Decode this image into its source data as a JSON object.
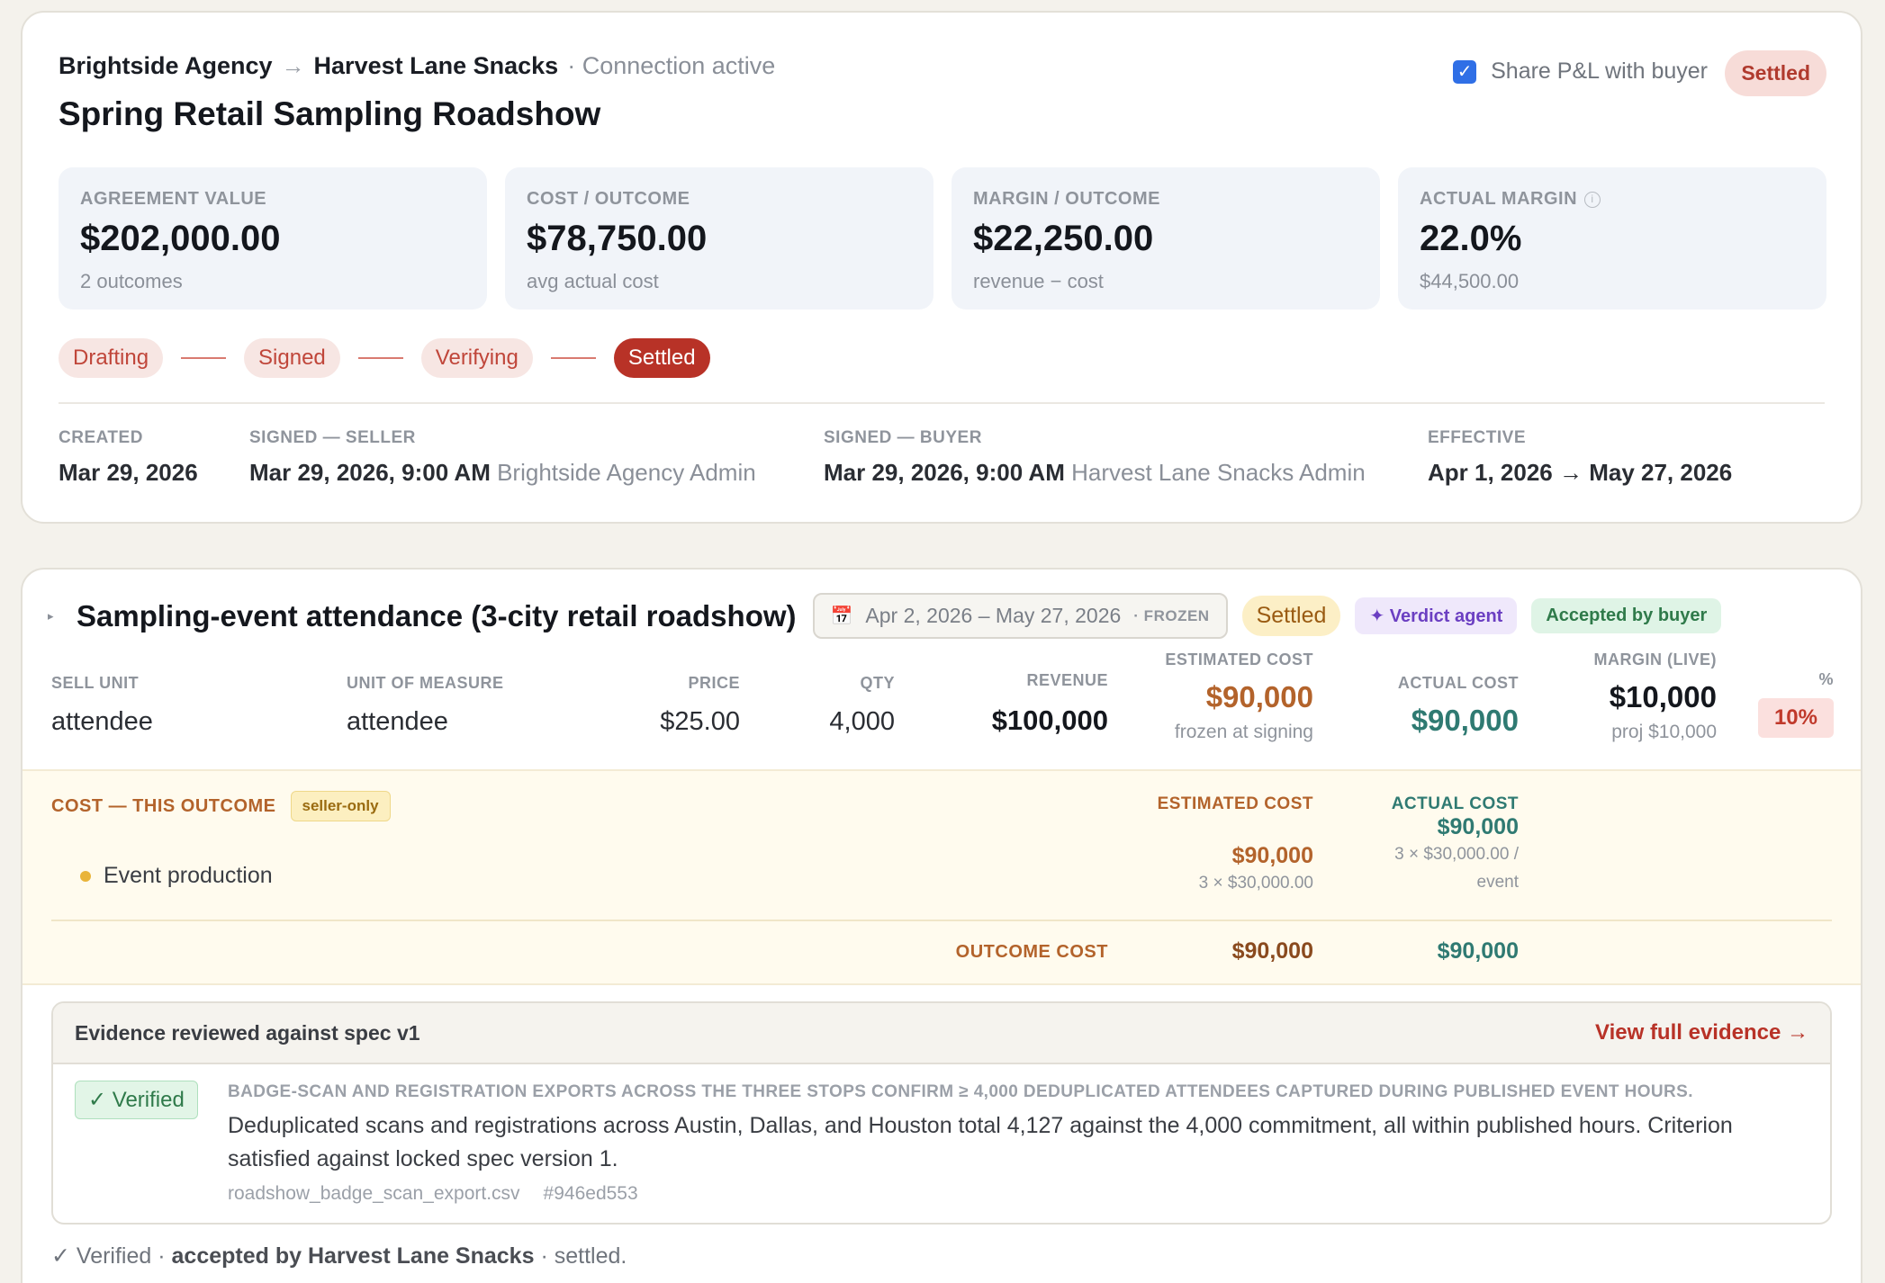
{
  "header": {
    "seller": "Brightside Agency",
    "arrow": "→",
    "buyer": "Harvest Lane Snacks",
    "connection": "· Connection active",
    "title": "Spring Retail Sampling Roadshow",
    "share_label": "Share P&L with buyer",
    "share_checked": true,
    "status": "Settled"
  },
  "kpis": [
    {
      "label": "AGREEMENT VALUE",
      "value": "$202,000.00",
      "sub": "2 outcomes"
    },
    {
      "label": "COST / OUTCOME",
      "value": "$78,750.00",
      "sub": "avg actual cost"
    },
    {
      "label": "MARGIN / OUTCOME",
      "value": "$22,250.00",
      "sub": "revenue − cost"
    },
    {
      "label": "ACTUAL MARGIN",
      "value": "22.0%",
      "sub": "$44,500.00",
      "info_icon": "i"
    }
  ],
  "stages": [
    "Drafting",
    "Signed",
    "Verifying",
    "Settled"
  ],
  "active_stage": "Settled",
  "meta": {
    "created_label": "CREATED",
    "created_value": "Mar 29, 2026",
    "signed_seller_label": "SIGNED — SELLER",
    "signed_seller_value": "Mar 29, 2026, 9:00 AM",
    "signed_seller_who": "Brightside Agency Admin",
    "signed_buyer_label": "SIGNED — BUYER",
    "signed_buyer_value": "Mar 29, 2026, 9:00 AM",
    "signed_buyer_who": "Harvest Lane Snacks Admin",
    "effective_label": "EFFECTIVE",
    "effective_value": "Apr 1, 2026 → May 27, 2026"
  },
  "outcome": {
    "caret": "▸",
    "title": "Sampling-event attendance (3-city retail roadshow)",
    "date_range": "Apr 2, 2026 – May 27, 2026",
    "frozen": "· FROZEN",
    "calendar_icon": "📅",
    "status_chip": "Settled",
    "verdict_chip": "✦ Verdict agent",
    "accepted_chip": "Accepted by buyer",
    "columns": {
      "sell_unit_label": "SELL UNIT",
      "sell_unit": "attendee",
      "uom_label": "UNIT OF MEASURE",
      "uom": "attendee",
      "price_label": "PRICE",
      "price": "$25.00",
      "qty_label": "QTY",
      "qty": "4,000",
      "revenue_label": "REVENUE",
      "revenue": "$100,000",
      "est_cost_label": "ESTIMATED COST",
      "est_cost": "$90,000",
      "est_note": "frozen at signing",
      "act_cost_label": "ACTUAL COST",
      "act_cost": "$90,000",
      "margin_label": "MARGIN (LIVE)",
      "margin": "$10,000",
      "margin_note": "proj $10,000",
      "pct_label": "%",
      "pct": "10%"
    },
    "cost": {
      "title": "COST — THIS OUTCOME",
      "seller_only": "seller-only",
      "est_header": "ESTIMATED COST",
      "act_header": "ACTUAL COST",
      "line_name": "Event production",
      "line_est": "$90,000",
      "line_est_note": "3 × $30,000.00",
      "line_act": "$90,000",
      "line_act_note_1": "3 × $30,000.00 /",
      "line_act_note_2": "event",
      "total_label": "OUTCOME COST",
      "total_est": "$90,000",
      "total_act": "$90,000"
    },
    "evidence": {
      "title": "Evidence reviewed against spec v1",
      "link": "View full evidence →",
      "verified": "✓ Verified",
      "criterion": "BADGE-SCAN AND REGISTRATION EXPORTS ACROSS THE THREE STOPS CONFIRM ≥ 4,000 DEDUPLICATED ATTENDEES CAPTURED DURING PUBLISHED EVENT HOURS.",
      "description": "Deduplicated scans and registrations across Austin, Dallas, and Houston total 4,127 against the 4,000 commitment, all within published hours. Criterion satisfied against locked spec version 1.",
      "file": "roadshow_badge_scan_export.csv",
      "hash": "#946ed553"
    },
    "footer": {
      "prefix": "✓ Verified ·",
      "accepted": "accepted by Harvest Lane Snacks",
      "suffix": "· settled."
    }
  },
  "colors": {
    "accent_red": "#b83227",
    "estimated_orange": "#b3632b",
    "actual_teal": "#2f7a72",
    "verdict_purple": "#6b3fc2"
  }
}
